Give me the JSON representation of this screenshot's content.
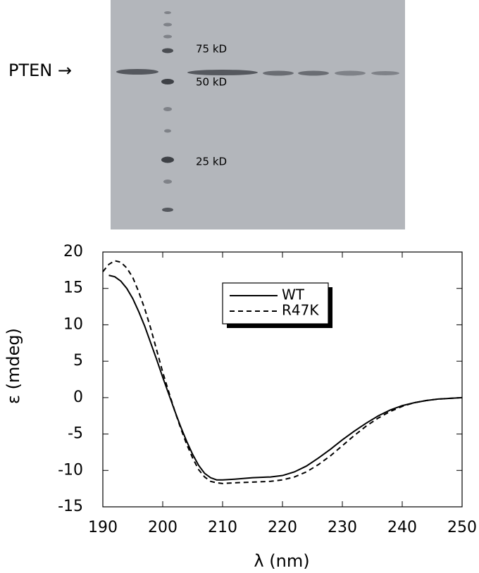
{
  "gel": {
    "label": "PTEN →",
    "markers": [
      "75 kD",
      "50 kD",
      "25 kD"
    ]
  },
  "chart_data": {
    "type": "line",
    "xlabel": "λ  (nm)",
    "ylabel": "ε  (mdeg)",
    "x": [
      190,
      191,
      192,
      193,
      194,
      195,
      196,
      197,
      198,
      199,
      200,
      201,
      202,
      203,
      204,
      205,
      206,
      207,
      208,
      209,
      210,
      212,
      215,
      218,
      220,
      222,
      224,
      226,
      228,
      230,
      232,
      234,
      236,
      238,
      240,
      242,
      244,
      246,
      248,
      250
    ],
    "series": [
      {
        "name": "WT",
        "color": "#000000",
        "line_style": "solid",
        "values": [
          null,
          16.8,
          16.6,
          16.0,
          15.0,
          13.6,
          11.8,
          9.8,
          7.5,
          5.2,
          2.8,
          0.5,
          -1.8,
          -4.0,
          -6.0,
          -7.8,
          -9.3,
          -10.4,
          -11.0,
          -11.3,
          -11.3,
          -11.2,
          -11.0,
          -10.9,
          -10.7,
          -10.2,
          -9.4,
          -8.3,
          -7.1,
          -5.8,
          -4.6,
          -3.5,
          -2.5,
          -1.7,
          -1.1,
          -0.7,
          -0.4,
          -0.2,
          -0.1,
          0
        ]
      },
      {
        "name": "R47K",
        "color": "#000000",
        "line_style": "dashed",
        "values": [
          17.3,
          18.3,
          18.8,
          18.6,
          17.8,
          16.5,
          14.5,
          12.2,
          9.5,
          6.5,
          3.5,
          0.8,
          -1.8,
          -4.2,
          -6.4,
          -8.3,
          -9.9,
          -10.9,
          -11.5,
          -11.7,
          -11.8,
          -11.7,
          -11.6,
          -11.5,
          -11.3,
          -10.9,
          -10.2,
          -9.2,
          -8.0,
          -6.6,
          -5.2,
          -3.9,
          -2.8,
          -1.9,
          -1.2,
          -0.7,
          -0.4,
          -0.2,
          -0.1,
          0
        ]
      }
    ],
    "xlim": [
      190,
      250
    ],
    "xticks": [
      190,
      200,
      210,
      220,
      230,
      240,
      250
    ],
    "ylim": [
      -15,
      20
    ],
    "yticks": [
      20,
      15,
      10,
      5,
      0,
      -5,
      -10,
      -15
    ],
    "grid": false,
    "legend": "upper center"
  }
}
